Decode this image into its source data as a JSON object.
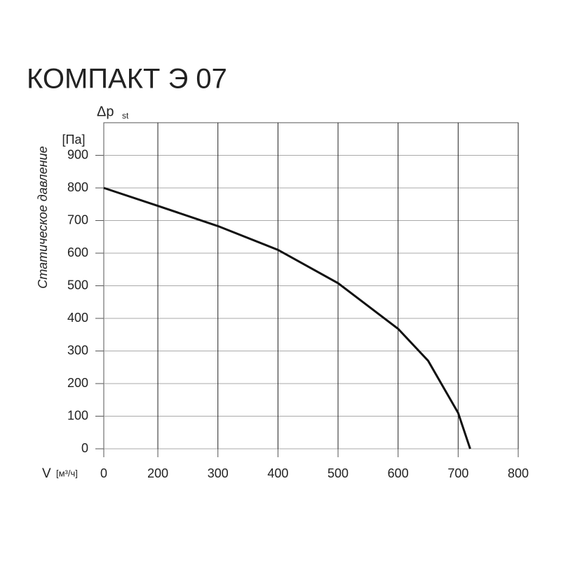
{
  "chart_data": {
    "type": "line",
    "title": "КОМПАКТ Э 07",
    "y_symbol": "Δp",
    "y_symbol_sub": "st",
    "y_unit": "[Па]",
    "y_label": "Статическое давление",
    "x_symbol": "V",
    "x_unit": "[м³/ч]",
    "x": [
      0,
      200,
      300,
      400,
      500,
      600,
      650,
      700,
      720
    ],
    "series": [
      {
        "color": "#111111",
        "values": [
          800,
          745,
          683,
          610,
          508,
          368,
          270,
          110,
          0
        ]
      }
    ],
    "xlim": [
      0,
      800
    ],
    "x_break": [
      0,
      110
    ],
    "xticks": [
      0,
      200,
      300,
      400,
      500,
      600,
      700,
      800
    ],
    "ylim": [
      0,
      1000
    ],
    "yticks": [
      0,
      100,
      200,
      300,
      400,
      500,
      600,
      700,
      800,
      900
    ],
    "grid": true
  }
}
